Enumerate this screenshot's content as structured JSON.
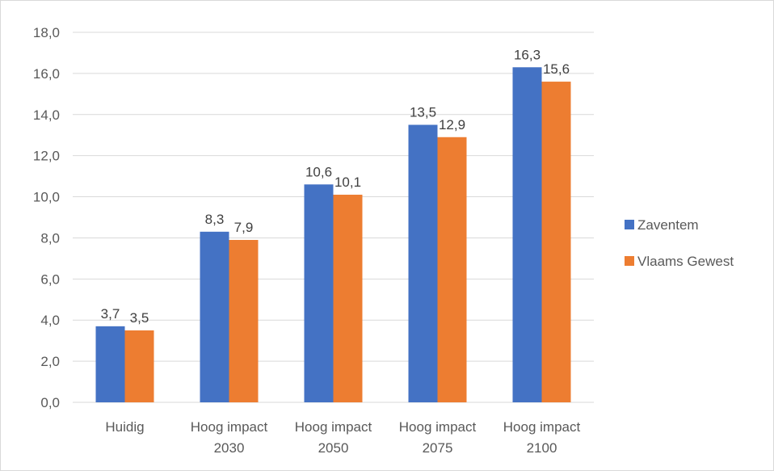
{
  "chart_data": {
    "type": "bar",
    "categories": [
      [
        "Huidig"
      ],
      [
        "Hoog impact",
        "2030"
      ],
      [
        "Hoog impact",
        "2050"
      ],
      [
        "Hoog impact",
        "2075"
      ],
      [
        "Hoog impact",
        "2100"
      ]
    ],
    "series": [
      {
        "name": "Zaventem",
        "color": "#4472C4",
        "values": [
          3.7,
          8.3,
          10.6,
          13.5,
          16.3
        ],
        "labels": [
          "3,7",
          "8,3",
          "10,6",
          "13,5",
          "16,3"
        ]
      },
      {
        "name": "Vlaams Gewest",
        "color": "#ED7D31",
        "values": [
          3.5,
          7.9,
          10.1,
          12.9,
          15.6
        ],
        "labels": [
          "3,5",
          "7,9",
          "10,1",
          "12,9",
          "15,6"
        ]
      }
    ],
    "y_ticks": [
      "0,0",
      "2,0",
      "4,0",
      "6,0",
      "8,0",
      "10,0",
      "12,0",
      "14,0",
      "16,0",
      "18,0"
    ],
    "ylim": [
      0,
      18
    ],
    "y_step": 2,
    "grid": true,
    "legend_position": "right",
    "title": "",
    "xlabel": "",
    "ylabel": ""
  }
}
